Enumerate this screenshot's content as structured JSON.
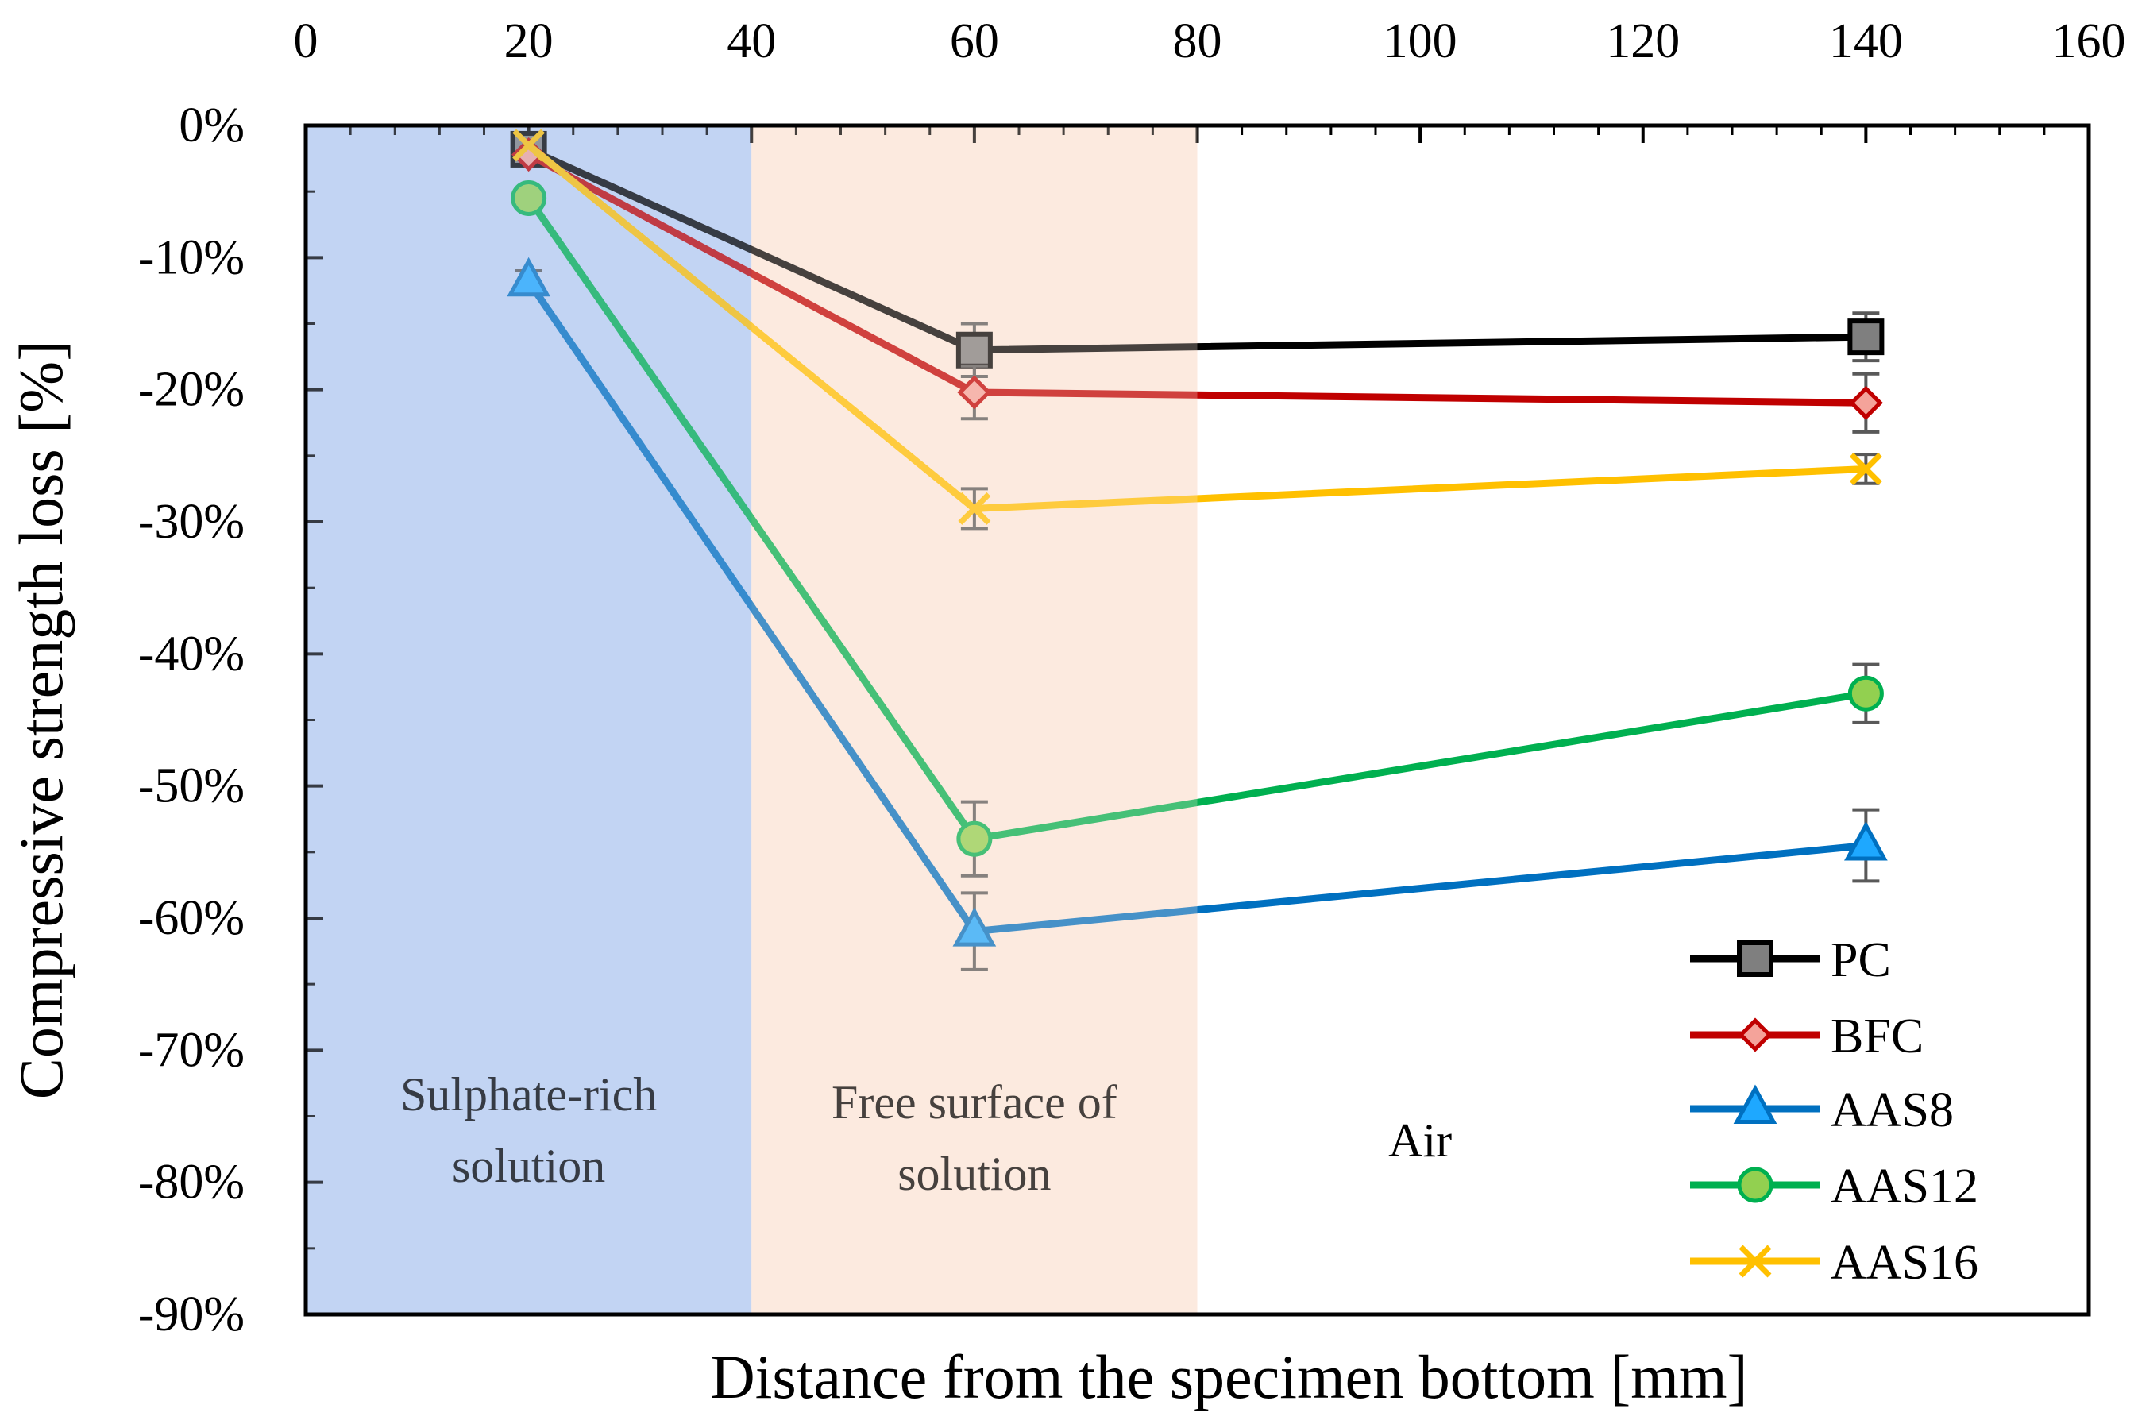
{
  "chart_data": {
    "type": "line",
    "title": "",
    "xlabel": "Distance from the specimen bottom [mm]",
    "ylabel": "Compressive strength loss [%]",
    "xlim": [
      0,
      160
    ],
    "ylim": [
      -90,
      0
    ],
    "x_ticks": [
      "0",
      "20",
      "40",
      "60",
      "80",
      "100",
      "120",
      "140",
      "160"
    ],
    "x_tick_values": [
      0,
      20,
      40,
      60,
      80,
      100,
      120,
      140,
      160
    ],
    "y_ticks": [
      "0%",
      "-10%",
      "-20%",
      "-30%",
      "-40%",
      "-50%",
      "-60%",
      "-70%",
      "-80%",
      "-90%"
    ],
    "y_tick_values": [
      0,
      -10,
      -20,
      -30,
      -40,
      -50,
      -60,
      -70,
      -80,
      -90
    ],
    "x_axis_position": "top",
    "grid": false,
    "legend_position": "bottom-right",
    "regions": [
      {
        "label_lines": [
          "Sulphate-rich",
          "solution"
        ],
        "x_range": [
          0,
          40
        ],
        "color": "#c3d4f3"
      },
      {
        "label_lines": [
          "Free surface of",
          "solution"
        ],
        "x_range": [
          40,
          80
        ],
        "color": "#fdeadf"
      },
      {
        "label_lines": [
          "Air"
        ],
        "x_range": [
          80,
          160
        ],
        "color": "#ffffff"
      }
    ],
    "series": [
      {
        "name": "PC",
        "color": "#000000",
        "marker": "square",
        "marker_fill": "#7f7f7f",
        "x": [
          20,
          60,
          140
        ],
        "values": [
          -1.8,
          -17.0,
          -16.0
        ],
        "error": [
          0,
          2.0,
          1.8
        ]
      },
      {
        "name": "BFC",
        "color": "#c00000",
        "marker": "diamond",
        "marker_fill": "#f4a39a",
        "x": [
          20,
          60,
          140
        ],
        "values": [
          -2.2,
          -20.2,
          -21.0
        ],
        "error": [
          0,
          2.0,
          2.2
        ]
      },
      {
        "name": "AAS8",
        "color": "#0070c0",
        "marker": "triangle",
        "marker_fill": "#1ea8ff",
        "x": [
          20,
          60,
          140
        ],
        "values": [
          -11.8,
          -61.0,
          -54.5
        ],
        "error": [
          0.8,
          2.9,
          2.7
        ]
      },
      {
        "name": "AAS12",
        "color": "#00b050",
        "marker": "circle",
        "marker_fill": "#92d050",
        "x": [
          20,
          60,
          140
        ],
        "values": [
          -5.5,
          -54.0,
          -43.0
        ],
        "error": [
          0,
          2.8,
          2.2
        ]
      },
      {
        "name": "AAS16",
        "color": "#ffc000",
        "marker": "x",
        "marker_fill": "#ffc000",
        "x": [
          20,
          60,
          140
        ],
        "values": [
          -1.5,
          -29.0,
          -26.0
        ],
        "error": [
          0,
          1.5,
          1.1
        ]
      }
    ]
  }
}
